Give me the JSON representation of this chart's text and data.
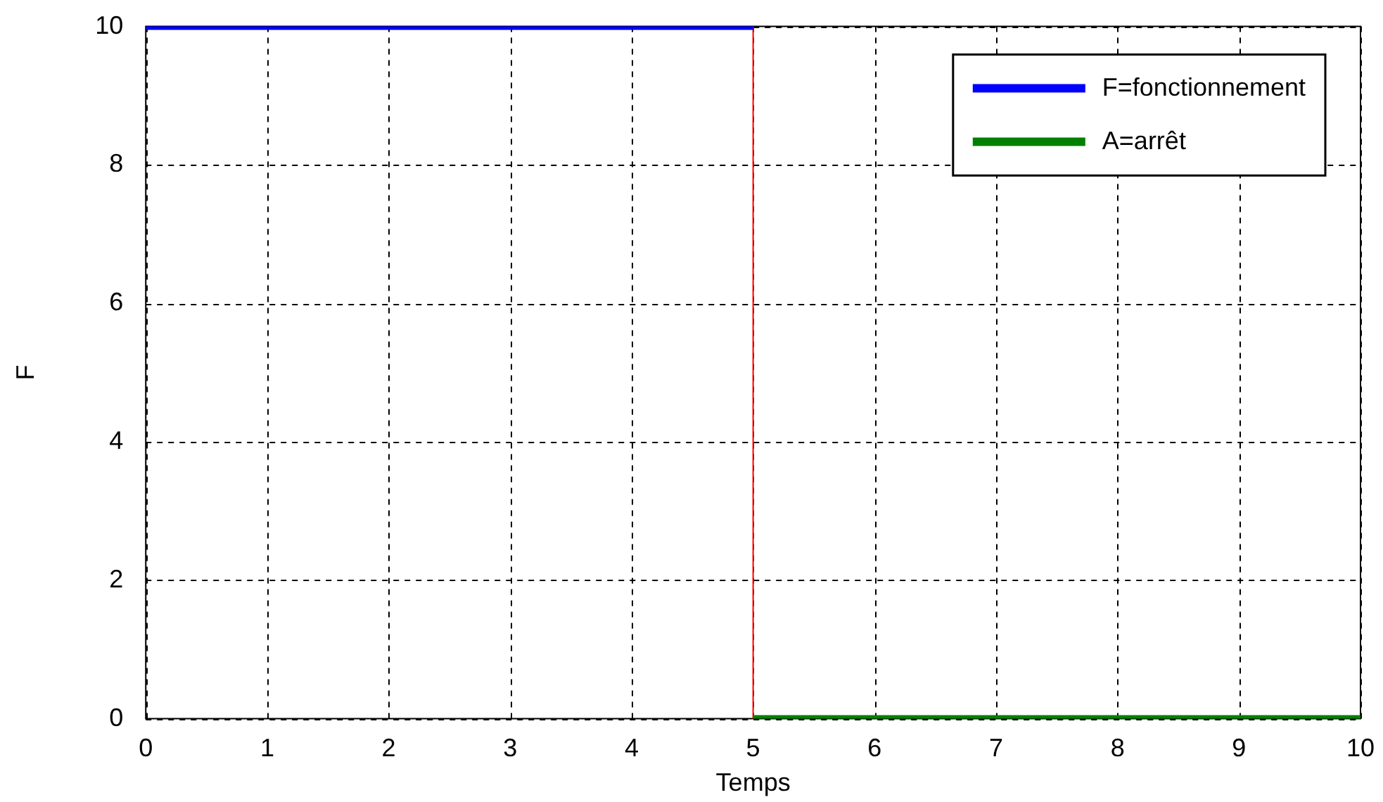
{
  "chart_data": {
    "type": "line",
    "xlabel": "Temps",
    "ylabel": "F",
    "series": [
      {
        "name": "F=fonctionnement",
        "color": "#0000ff",
        "x": [
          0,
          5
        ],
        "values": [
          10,
          10
        ]
      },
      {
        "name": "A=arrêt",
        "color": "#008000",
        "x": [
          5,
          10
        ],
        "values": [
          0,
          0
        ]
      },
      {
        "color": "#ff0000",
        "x": [
          5,
          5
        ],
        "values": [
          0,
          10
        ]
      }
    ],
    "xlim": [
      0,
      10
    ],
    "xticks": [
      0,
      1,
      2,
      3,
      4,
      5,
      6,
      7,
      8,
      9,
      10
    ],
    "ylim": [
      0,
      10
    ],
    "yticks": [
      0,
      2,
      4,
      6,
      8,
      10
    ],
    "grid": true,
    "legend": "top right",
    "marker": "none",
    "line_style": "solid"
  }
}
